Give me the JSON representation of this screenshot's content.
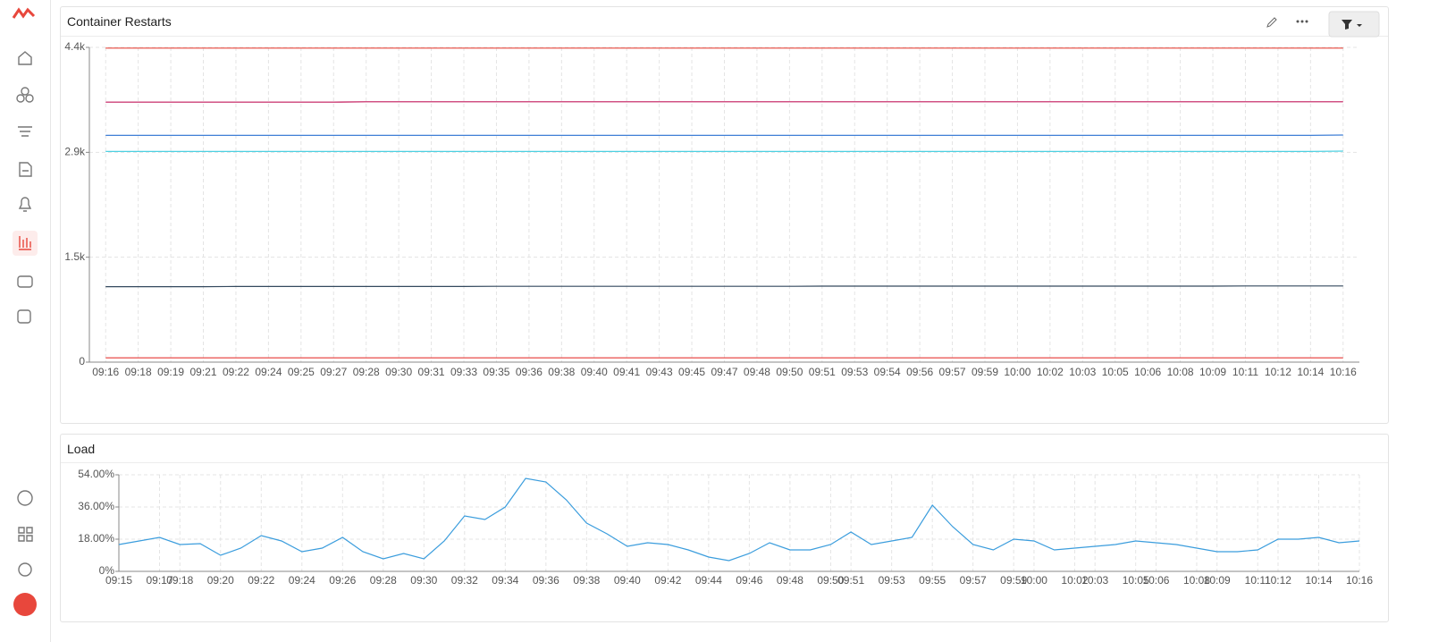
{
  "chart_data": [
    {
      "type": "line",
      "title": "Container Restarts",
      "categories": [
        "09:16",
        "09:18",
        "09:19",
        "09:21",
        "09:22",
        "09:24",
        "09:25",
        "09:27",
        "09:28",
        "09:30",
        "09:31",
        "09:33",
        "09:35",
        "09:36",
        "09:38",
        "09:40",
        "09:41",
        "09:43",
        "09:45",
        "09:47",
        "09:48",
        "09:50",
        "09:51",
        "09:53",
        "09:54",
        "09:56",
        "09:57",
        "09:59",
        "10:00",
        "10:02",
        "10:03",
        "10:05",
        "10:06",
        "10:08",
        "10:09",
        "10:11",
        "10:12",
        "10:14",
        "10:16"
      ],
      "series": [
        {
          "color": "#e8473c",
          "values": [
            4390,
            4390,
            4390,
            4390,
            4390,
            4390,
            4390,
            4390,
            4390,
            4390,
            4390,
            4390,
            4390,
            4390,
            4390,
            4390,
            4390,
            4390,
            4390,
            4390,
            4390,
            4390,
            4390,
            4390,
            4390,
            4390,
            4390,
            4390,
            4390,
            4390,
            4390,
            4390,
            4390,
            4390,
            4390,
            4390,
            4390,
            4390,
            4390
          ]
        },
        {
          "color": "#c2185b",
          "values": [
            3635,
            3635,
            3635,
            3635,
            3635,
            3635,
            3635,
            3635,
            3640,
            3640,
            3640,
            3640,
            3640,
            3640,
            3640,
            3640,
            3640,
            3640,
            3640,
            3640,
            3640,
            3640,
            3640,
            3640,
            3640,
            3640,
            3640,
            3640,
            3640,
            3640,
            3640,
            3640,
            3640,
            3640,
            3640,
            3640,
            3640,
            3640,
            3640
          ]
        },
        {
          "color": "#3f7fd6",
          "values": [
            3170,
            3170,
            3170,
            3170,
            3170,
            3170,
            3170,
            3170,
            3170,
            3170,
            3170,
            3170,
            3170,
            3170,
            3170,
            3170,
            3170,
            3170,
            3170,
            3170,
            3170,
            3170,
            3170,
            3170,
            3170,
            3170,
            3170,
            3170,
            3170,
            3170,
            3170,
            3170,
            3170,
            3170,
            3170,
            3170,
            3170,
            3170,
            3175
          ]
        },
        {
          "color": "#4dd0e1",
          "values": [
            2945,
            2945,
            2945,
            2945,
            2945,
            2945,
            2945,
            2945,
            2945,
            2945,
            2945,
            2945,
            2945,
            2945,
            2945,
            2945,
            2945,
            2945,
            2945,
            2945,
            2945,
            2945,
            2945,
            2945,
            2945,
            2945,
            2945,
            2945,
            2945,
            2945,
            2945,
            2945,
            2945,
            2945,
            2945,
            2945,
            2945,
            2945,
            2950
          ]
        },
        {
          "color": "#34495e",
          "values": [
            1055,
            1055,
            1055,
            1055,
            1058,
            1058,
            1058,
            1058,
            1058,
            1058,
            1058,
            1058,
            1060,
            1060,
            1060,
            1060,
            1060,
            1060,
            1060,
            1060,
            1060,
            1060,
            1062,
            1062,
            1062,
            1062,
            1062,
            1062,
            1062,
            1062,
            1062,
            1062,
            1062,
            1062,
            1062,
            1065,
            1065,
            1065,
            1065
          ]
        },
        {
          "color": "#e53935",
          "values": [
            60,
            60,
            60,
            60,
            60,
            60,
            60,
            60,
            60,
            60,
            60,
            60,
            60,
            60,
            60,
            60,
            60,
            60,
            60,
            60,
            60,
            60,
            60,
            60,
            60,
            60,
            60,
            60,
            60,
            60,
            60,
            60,
            60,
            60,
            60,
            60,
            60,
            60,
            60
          ]
        }
      ],
      "ylim": [
        0,
        4400
      ],
      "yticks": [
        0,
        {
          "value": 1467,
          "label": "1.5k"
        },
        {
          "value": 2933,
          "label": "2.9k"
        },
        {
          "value": 4400,
          "label": "4.4k"
        }
      ],
      "grid": true
    },
    {
      "type": "line",
      "title": "Load",
      "categories": [
        "09:15",
        null,
        "09:17",
        "09:18",
        null,
        "09:20",
        null,
        "09:22",
        null,
        "09:24",
        null,
        "09:26",
        null,
        "09:28",
        null,
        "09:30",
        null,
        "09:32",
        null,
        "09:34",
        null,
        "09:36",
        null,
        "09:38",
        null,
        "09:40",
        null,
        "09:42",
        null,
        "09:44",
        null,
        "09:46",
        null,
        "09:48",
        null,
        "09:50",
        "09:51",
        null,
        "09:53",
        null,
        "09:55",
        null,
        "09:57",
        null,
        "09:59",
        "10:00",
        null,
        "10:02",
        "10:03",
        null,
        "10:05",
        "10:06",
        null,
        "10:08",
        "10:09",
        null,
        "10:11",
        "10:12",
        null,
        "10:14",
        null,
        "10:16"
      ],
      "series": [
        {
          "color": "#3b9ddd",
          "values": [
            15,
            17,
            19,
            15,
            15.5,
            9,
            13,
            20,
            17,
            11,
            13,
            19,
            11,
            7,
            10,
            7,
            17,
            31,
            29,
            36,
            52,
            50,
            40,
            27,
            21,
            14,
            16,
            15,
            12,
            8,
            6,
            10,
            16,
            12,
            12,
            15,
            22,
            15,
            17,
            19,
            37,
            25,
            15,
            12,
            18,
            17,
            12,
            13,
            14,
            15,
            17,
            16,
            15,
            13,
            11,
            11,
            12,
            18,
            18,
            19,
            16,
            17
          ]
        }
      ],
      "ylim": [
        0,
        54
      ],
      "yticks": [
        {
          "value": 0,
          "label": "0%"
        },
        {
          "value": 18,
          "label": "18.00%"
        },
        {
          "value": 36,
          "label": "36.00%"
        },
        {
          "value": 54,
          "label": "54.00%"
        }
      ],
      "grid": true
    }
  ]
}
